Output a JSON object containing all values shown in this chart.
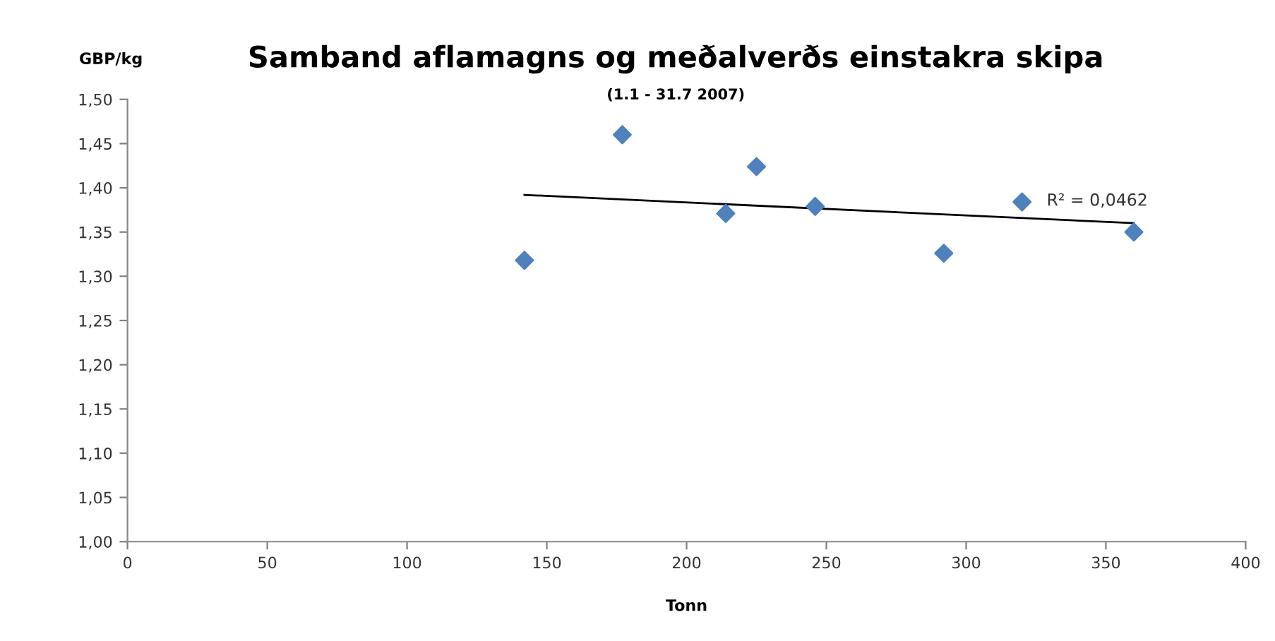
{
  "chart_data": {
    "type": "scatter",
    "title": "Samband aflamagns og meðalverðs einstakra skipa",
    "subtitle": "(1.1 - 31.7 2007)",
    "xlabel": "Tonn",
    "ylabel": "GBP/kg",
    "series": [
      {
        "color": "#4f81bd",
        "marker": "diamond",
        "x": [
          142,
          177,
          214,
          225,
          246,
          292,
          320,
          360
        ],
        "values": [
          1.318,
          1.46,
          1.371,
          1.424,
          1.379,
          1.326,
          1.384,
          1.35
        ]
      },
      {
        "type": "line",
        "color": "#000000",
        "marker": "none",
        "x": [
          142,
          360
        ],
        "values": [
          1.392,
          1.36
        ]
      }
    ],
    "annotations": [
      "R² = 0,0462"
    ],
    "xlim": [
      0,
      400
    ],
    "xticks": [
      0,
      50,
      100,
      150,
      200,
      250,
      300,
      350,
      400
    ],
    "ylim": [
      1.0,
      1.5
    ],
    "yticks": [
      {
        "value": 1.0,
        "label": "1,00"
      },
      {
        "value": 1.05,
        "label": "1,05"
      },
      {
        "value": 1.1,
        "label": "1,10"
      },
      {
        "value": 1.15,
        "label": "1,15"
      },
      {
        "value": 1.2,
        "label": "1,20"
      },
      {
        "value": 1.25,
        "label": "1,25"
      },
      {
        "value": 1.3,
        "label": "1,30"
      },
      {
        "value": 1.35,
        "label": "1,35"
      },
      {
        "value": 1.4,
        "label": "1,40"
      },
      {
        "value": 1.45,
        "label": "1,45"
      },
      {
        "value": 1.5,
        "label": "1,50"
      }
    ],
    "grid": false,
    "legend": false
  }
}
